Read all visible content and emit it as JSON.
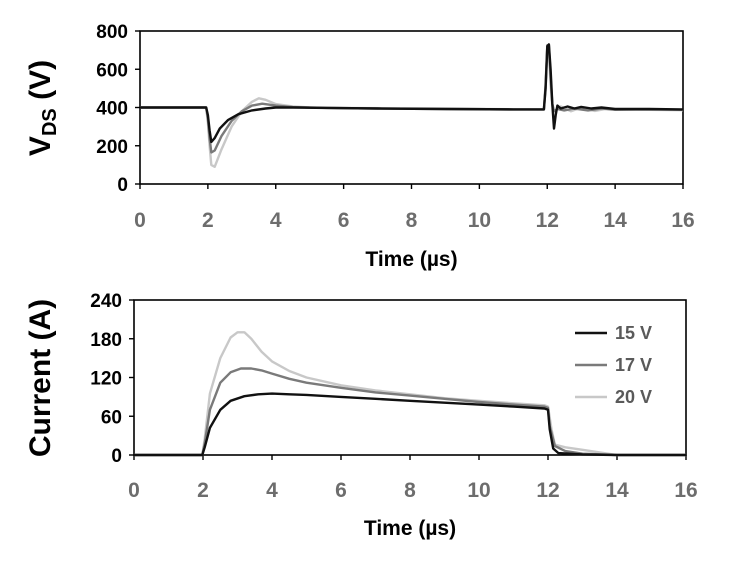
{
  "chart_data": [
    {
      "type": "line",
      "name": "voltage",
      "ylabel_main": "V",
      "ylabel_sub": "DS",
      "ylabel_unit": " (V)",
      "xlabel": "Time (µs)",
      "xlim": [
        0,
        16
      ],
      "ylim": [
        0,
        800
      ],
      "xticks": [
        0,
        2,
        4,
        6,
        8,
        10,
        12,
        14,
        16
      ],
      "yticks": [
        0,
        200,
        400,
        600,
        800
      ],
      "series": [
        {
          "name": "15 V",
          "color": "#111111",
          "x": [
            0,
            1.95,
            2.0,
            2.05,
            2.1,
            2.2,
            2.35,
            2.6,
            2.9,
            3.3,
            3.7,
            4.0,
            4.5,
            5.5,
            7,
            9,
            11,
            11.9,
            11.95,
            12.0,
            12.05,
            12.1,
            12.15,
            12.2,
            12.25,
            12.3,
            12.4,
            12.6,
            12.8,
            13.0,
            13.3,
            13.6,
            14,
            15,
            16
          ],
          "y": [
            400,
            400,
            360,
            280,
            220,
            240,
            290,
            335,
            365,
            385,
            395,
            400,
            400,
            398,
            395,
            392,
            390,
            390,
            500,
            720,
            730,
            600,
            420,
            290,
            360,
            410,
            395,
            405,
            395,
            403,
            395,
            400,
            392,
            392,
            390
          ]
        },
        {
          "name": "17 V",
          "color": "#7a7a7a",
          "x": [
            0,
            1.95,
            2.0,
            2.05,
            2.1,
            2.2,
            2.4,
            2.7,
            3.0,
            3.3,
            3.6,
            4.0,
            4.5,
            5.5,
            7,
            9,
            11,
            11.9,
            11.95,
            12.0,
            12.05,
            12.1,
            12.15,
            12.2,
            12.3,
            12.5,
            12.8,
            13.2,
            13.6,
            14,
            15,
            16
          ],
          "y": [
            400,
            400,
            340,
            240,
            165,
            175,
            250,
            330,
            380,
            410,
            420,
            410,
            402,
            398,
            395,
            392,
            390,
            390,
            520,
            725,
            725,
            560,
            420,
            380,
            392,
            385,
            395,
            385,
            395,
            388,
            390,
            388
          ]
        },
        {
          "name": "20 V",
          "color": "#c8c8c8",
          "x": [
            0,
            1.95,
            2.0,
            2.05,
            2.1,
            2.2,
            2.4,
            2.7,
            3.0,
            3.3,
            3.5,
            3.7,
            4.0,
            4.5,
            5,
            6,
            8,
            10,
            11.9,
            11.95,
            12.0,
            12.05,
            12.1,
            12.15,
            12.2,
            12.4,
            12.7,
            13.0,
            13.4,
            13.8,
            14,
            15,
            16
          ],
          "y": [
            400,
            400,
            320,
            200,
            100,
            90,
            180,
            300,
            380,
            430,
            448,
            440,
            418,
            405,
            400,
            398,
            395,
            392,
            390,
            500,
            710,
            700,
            520,
            410,
            380,
            405,
            380,
            400,
            382,
            395,
            390,
            388,
            386
          ]
        }
      ]
    },
    {
      "type": "line",
      "name": "current",
      "ylabel": "Current (A)",
      "xlabel": "Time (µs)",
      "xlim": [
        0,
        16
      ],
      "ylim": [
        0,
        240
      ],
      "xticks": [
        0,
        2,
        4,
        6,
        8,
        10,
        12,
        14,
        16
      ],
      "yticks": [
        0,
        60,
        120,
        180,
        240
      ],
      "legend_position": "top-right",
      "series": [
        {
          "name": "15 V",
          "color": "#111111",
          "x": [
            0,
            1.98,
            2.05,
            2.2,
            2.5,
            2.8,
            3.2,
            3.6,
            4.0,
            4.5,
            5,
            6,
            7,
            8,
            9,
            10,
            11,
            11.9,
            12.0,
            12.05,
            12.15,
            12.3,
            13,
            14,
            16
          ],
          "y": [
            0,
            0,
            12,
            42,
            70,
            84,
            91,
            94,
            95,
            94,
            93,
            90,
            87,
            84,
            81,
            78,
            75,
            72,
            70,
            40,
            10,
            3,
            1,
            0,
            0
          ]
        },
        {
          "name": "17 V",
          "color": "#7a7a7a",
          "x": [
            0,
            1.98,
            2.05,
            2.2,
            2.5,
            2.8,
            3.1,
            3.4,
            3.7,
            4.0,
            4.5,
            5,
            6,
            7,
            8,
            9,
            10,
            11,
            11.9,
            12.0,
            12.05,
            12.2,
            12.5,
            13,
            14,
            16
          ],
          "y": [
            0,
            0,
            18,
            70,
            112,
            128,
            134,
            134,
            131,
            126,
            118,
            112,
            104,
            97,
            92,
            87,
            82,
            78,
            75,
            73,
            45,
            14,
            6,
            2,
            0,
            0
          ]
        },
        {
          "name": "20 V",
          "color": "#c8c8c8",
          "x": [
            0,
            1.98,
            2.05,
            2.2,
            2.5,
            2.8,
            3.0,
            3.2,
            3.4,
            3.7,
            4.0,
            4.5,
            5,
            6,
            7,
            8,
            9,
            10,
            11,
            11.9,
            12.0,
            12.1,
            12.2,
            12.5,
            13,
            13.5,
            14,
            16
          ],
          "y": [
            0,
            0,
            25,
            95,
            150,
            182,
            190,
            190,
            180,
            160,
            145,
            130,
            120,
            108,
            100,
            94,
            88,
            84,
            80,
            77,
            75,
            40,
            16,
            12,
            8,
            4,
            0,
            0
          ]
        }
      ]
    }
  ]
}
